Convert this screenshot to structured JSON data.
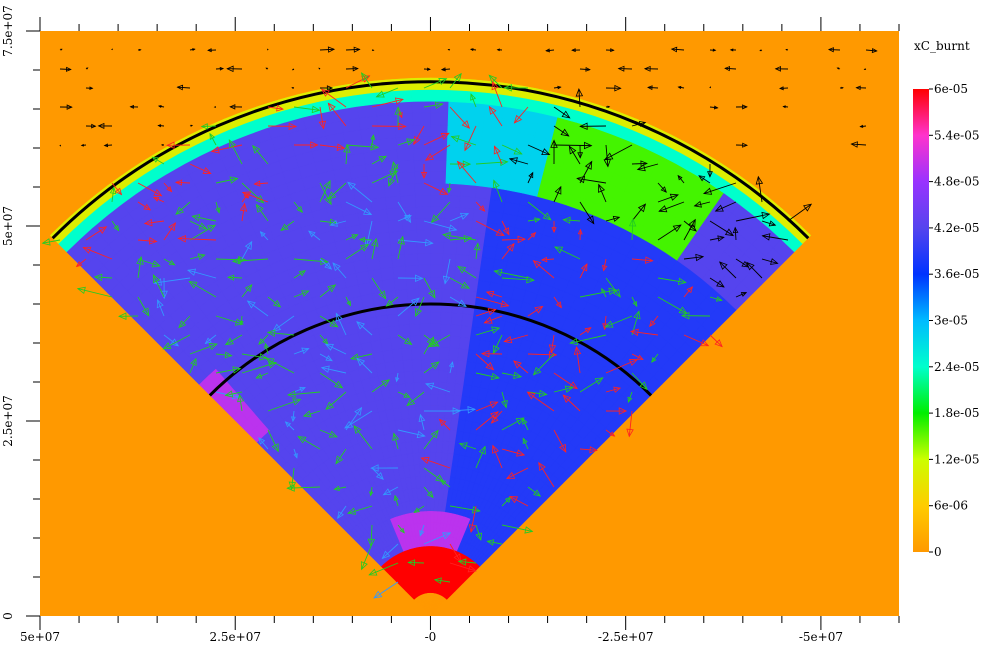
{
  "chart_data": {
    "type": "heatmap",
    "subtype": "wedge-pseudocolor-with-velocity-vectors",
    "title": "",
    "xlabel": "",
    "ylabel": "",
    "x_axis": {
      "range": [
        50000000,
        -60000000
      ],
      "reversed": true,
      "tick_values": [
        50000000,
        25000000,
        0,
        -25000000,
        -50000000
      ],
      "tick_labels": [
        "5e+07",
        "2.5e+07",
        "-0",
        "-2.5e+07",
        "-5e+07"
      ],
      "minor_step": 5000000
    },
    "y_axis": {
      "range": [
        0,
        75000000
      ],
      "tick_values": [
        0,
        25000000,
        50000000,
        75000000
      ],
      "tick_labels": [
        "0",
        "2.5e+07",
        "5e+07",
        "7.5e+07"
      ],
      "minor_step": 5000000
    },
    "colorbar": {
      "title": "xC_burnt",
      "min": 0,
      "max": 6e-05,
      "tick_values": [
        0,
        6e-06,
        1.2e-05,
        1.8e-05,
        2.4e-05,
        3e-05,
        3.6e-05,
        4.2e-05,
        4.8e-05,
        5.4e-05,
        6e-05
      ],
      "tick_labels": [
        "0",
        "6e-06",
        "1.2e-05",
        "1.8e-05",
        "2.4e-05",
        "3e-05",
        "3.6e-05",
        "4.2e-05",
        "4.8e-05",
        "5.4e-05",
        "6e-05"
      ],
      "colormap": [
        "#ff9900",
        "#ffcc00",
        "#ccff00",
        "#00ee00",
        "#00ffcc",
        "#00bbff",
        "#0033ff",
        "#5544ee",
        "#9933ff",
        "#ff33cc",
        "#ff0000"
      ]
    },
    "background_value": 0,
    "wedge": {
      "apex": [
        0,
        0
      ],
      "half_angle_deg": 45,
      "outer_radius": 69000000
    },
    "contours": [
      {
        "radius": 68500000,
        "color": "#000000"
      },
      {
        "radius": 40000000,
        "color": "#000000"
      }
    ],
    "vector_colors": [
      "#ff2222",
      "#22cc22",
      "#3399ff",
      "#000000"
    ],
    "grid": false
  }
}
